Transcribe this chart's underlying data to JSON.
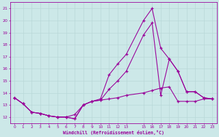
{
  "xlabel": "Windchill (Refroidissement éolien,°C)",
  "bg_color": "#cce8e8",
  "grid_color": "#aacccc",
  "line_color": "#990099",
  "xlim": [
    -0.5,
    23.5
  ],
  "ylim": [
    11.5,
    21.5
  ],
  "xtick_locs": [
    0,
    1,
    2,
    3,
    4,
    5,
    6,
    7,
    8,
    9,
    10,
    11,
    12,
    13,
    15,
    16,
    17,
    18,
    19,
    20,
    21,
    22,
    23
  ],
  "xtick_labels": [
    "0",
    "1",
    "2",
    "3",
    "4",
    "5",
    "6",
    "7",
    "8",
    "9",
    "10",
    "11",
    "12",
    "13",
    "15",
    "16",
    "17",
    "18",
    "19",
    "20",
    "21",
    "22",
    "23"
  ],
  "yticks": [
    12,
    13,
    14,
    15,
    16,
    17,
    18,
    19,
    20,
    21
  ],
  "line1_x": [
    0,
    1,
    2,
    3,
    4,
    5,
    6,
    7,
    8,
    9,
    10,
    11,
    12,
    13,
    15,
    16,
    17,
    18,
    19,
    20,
    21,
    22,
    23
  ],
  "line1_y": [
    13.6,
    13.1,
    12.4,
    12.3,
    12.1,
    12.0,
    12.0,
    11.85,
    13.0,
    13.3,
    13.5,
    15.5,
    16.4,
    17.2,
    20.0,
    21.0,
    17.7,
    16.8,
    15.8,
    14.1,
    14.1,
    13.6,
    13.5
  ],
  "line2_x": [
    0,
    1,
    2,
    3,
    4,
    5,
    6,
    7,
    8,
    9,
    10,
    11,
    12,
    13,
    15,
    16,
    17,
    18,
    19,
    20,
    21,
    22,
    23
  ],
  "line2_y": [
    13.6,
    13.1,
    12.4,
    12.3,
    12.1,
    12.0,
    12.0,
    12.2,
    13.0,
    13.3,
    13.4,
    13.5,
    13.6,
    13.8,
    14.0,
    14.2,
    14.4,
    14.5,
    13.3,
    13.3,
    13.3,
    13.5,
    13.5
  ],
  "line3_x": [
    0,
    1,
    2,
    3,
    4,
    5,
    6,
    7,
    8,
    9,
    10,
    11,
    12,
    13,
    15,
    16,
    17,
    18,
    19,
    20,
    21,
    22,
    23
  ],
  "line3_y": [
    13.6,
    13.1,
    12.4,
    12.3,
    12.1,
    12.0,
    12.0,
    11.85,
    13.0,
    13.3,
    13.4,
    14.3,
    15.0,
    15.8,
    18.8,
    19.8,
    13.8,
    16.8,
    15.8,
    14.1,
    14.1,
    13.6,
    13.5
  ]
}
